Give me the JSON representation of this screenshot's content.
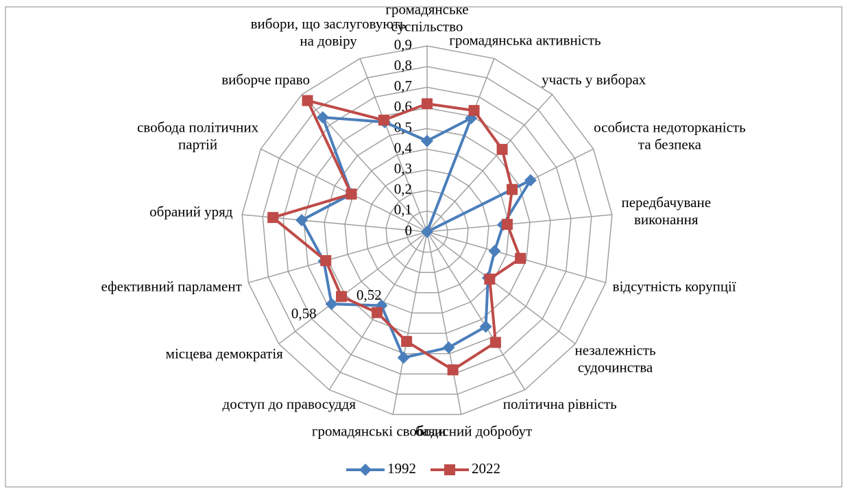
{
  "chart_data": {
    "type": "radar",
    "categories": [
      "громадянське\nсуспільство",
      "громадянська активність",
      "участь у виборах",
      "особиста недоторканість\nта безпека",
      "передбачуване\nвиконання",
      "відсутність корупції",
      "незалежність\nсудочинства",
      "політична рівність",
      "базисний добробут",
      "громадянські свободи",
      "доступ до правосуддя",
      "місцева демократія",
      "ефективний парламент",
      "обраний уряд",
      "свобода політичних\nпартій",
      "виборче право",
      "вибори, що заслуговують\nна довіру"
    ],
    "series": [
      {
        "name": "1992",
        "color": "#4a7ebb",
        "marker": "diamond",
        "values": [
          0.44,
          0.59,
          0,
          0.56,
          0.37,
          0.34,
          0.37,
          0.54,
          0.57,
          0.62,
          0.42,
          0.58,
          0.52,
          0.61,
          0.41,
          0.75,
          0.57
        ],
        "value_labels": [
          null,
          null,
          null,
          null,
          null,
          null,
          null,
          null,
          null,
          null,
          null,
          "0,58",
          null,
          null,
          null,
          null,
          null
        ]
      },
      {
        "name": "2022",
        "color": "#be4b48",
        "marker": "square",
        "values": [
          0.62,
          0.63,
          0.54,
          0.46,
          0.39,
          0.47,
          0.38,
          0.63,
          0.68,
          0.54,
          0.46,
          0.52,
          0.51,
          0.75,
          0.41,
          0.86,
          0.58
        ],
        "value_labels": [
          null,
          null,
          null,
          null,
          null,
          null,
          null,
          null,
          null,
          null,
          null,
          "0,52",
          null,
          null,
          null,
          null,
          null
        ]
      }
    ],
    "rlim": [
      0,
      0.9
    ],
    "rticks": [
      0,
      {
        "value": 0.1,
        "label": "0,1"
      },
      {
        "value": 0.2,
        "label": "0,2"
      },
      {
        "value": 0.3,
        "label": "0,3"
      },
      {
        "value": 0.4,
        "label": "0,4"
      },
      {
        "value": 0.5,
        "label": "0,5"
      },
      {
        "value": 0.6,
        "label": "0,6"
      },
      {
        "value": 0.7,
        "label": "0,7"
      },
      {
        "value": 0.8,
        "label": "0,8"
      },
      {
        "value": 0.9,
        "label": "0,9"
      }
    ],
    "grid": true,
    "legend": "bottom"
  }
}
